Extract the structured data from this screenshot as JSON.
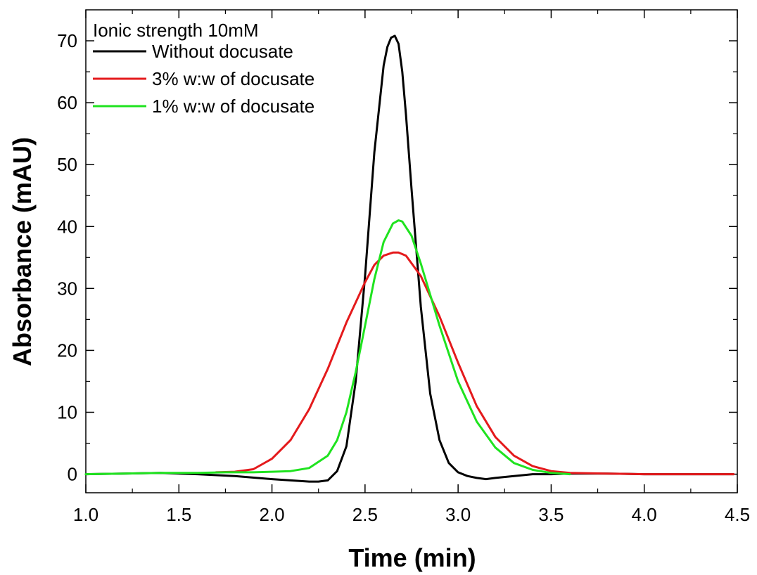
{
  "chart_data": {
    "type": "line",
    "title": "",
    "xlabel": "Time (min)",
    "ylabel": "Absorbance (mAU)",
    "xlim": [
      1.0,
      4.5
    ],
    "ylim": [
      -3,
      75
    ],
    "x_ticks": [
      "1.0",
      "1.5",
      "2.0",
      "2.5",
      "3.0",
      "3.5",
      "4.0",
      "4.5"
    ],
    "y_ticks": [
      "0",
      "10",
      "20",
      "30",
      "40",
      "50",
      "60",
      "70"
    ],
    "grid": false,
    "legend": {
      "position": "top-left",
      "title": "Ionic strength 10mM"
    },
    "series": [
      {
        "name": "Without docusate",
        "color": "#000000",
        "x": [
          1.0,
          1.2,
          1.4,
          1.6,
          1.8,
          2.0,
          2.1,
          2.2,
          2.25,
          2.3,
          2.35,
          2.4,
          2.45,
          2.5,
          2.55,
          2.6,
          2.62,
          2.64,
          2.66,
          2.68,
          2.7,
          2.72,
          2.75,
          2.8,
          2.85,
          2.9,
          2.95,
          3.0,
          3.05,
          3.1,
          3.15,
          3.2,
          3.3,
          3.4,
          3.5,
          3.6,
          3.8,
          4.0,
          4.2,
          4.48
        ],
        "y": [
          0.0,
          0.1,
          0.2,
          0.0,
          -0.3,
          -0.8,
          -1.0,
          -1.2,
          -1.2,
          -1.0,
          0.5,
          4.5,
          15.0,
          32.0,
          52.0,
          66.0,
          69.0,
          70.5,
          70.8,
          69.5,
          65.0,
          58.0,
          46.0,
          27.0,
          13.0,
          5.5,
          1.8,
          0.3,
          -0.3,
          -0.6,
          -0.8,
          -0.6,
          -0.3,
          0.0,
          0.0,
          0.1,
          0.1,
          0.0,
          0.0,
          0.0
        ]
      },
      {
        "name": "3% w:w of docusate",
        "color": "#e41a1c",
        "x": [
          1.7,
          1.8,
          1.9,
          2.0,
          2.1,
          2.2,
          2.3,
          2.4,
          2.5,
          2.55,
          2.6,
          2.65,
          2.68,
          2.72,
          2.8,
          2.9,
          3.0,
          3.1,
          3.2,
          3.3,
          3.4,
          3.5,
          3.6,
          3.8,
          4.0,
          4.2,
          4.48
        ],
        "y": [
          0.3,
          0.4,
          0.8,
          2.5,
          5.5,
          10.5,
          17.0,
          24.5,
          31.0,
          33.8,
          35.3,
          35.8,
          35.8,
          35.3,
          32.0,
          25.5,
          18.0,
          11.0,
          6.0,
          3.0,
          1.3,
          0.5,
          0.2,
          0.1,
          0.0,
          0.0,
          0.0
        ]
      },
      {
        "name": "1% w:w of docusate",
        "color": "#1fe31f",
        "x": [
          1.0,
          1.2,
          1.4,
          1.6,
          1.75,
          1.8,
          1.9,
          2.0,
          2.1,
          2.2,
          2.3,
          2.35,
          2.4,
          2.45,
          2.5,
          2.55,
          2.6,
          2.65,
          2.68,
          2.7,
          2.75,
          2.8,
          2.9,
          3.0,
          3.1,
          3.2,
          3.3,
          3.4,
          3.5,
          3.6
        ],
        "y": [
          0.0,
          0.1,
          0.2,
          0.2,
          0.3,
          0.3,
          0.3,
          0.4,
          0.5,
          1.0,
          3.0,
          5.5,
          10.0,
          16.5,
          24.0,
          31.5,
          37.5,
          40.5,
          41.0,
          40.8,
          38.5,
          34.0,
          24.0,
          15.0,
          8.5,
          4.3,
          1.8,
          0.7,
          0.2,
          0.0
        ]
      }
    ]
  }
}
